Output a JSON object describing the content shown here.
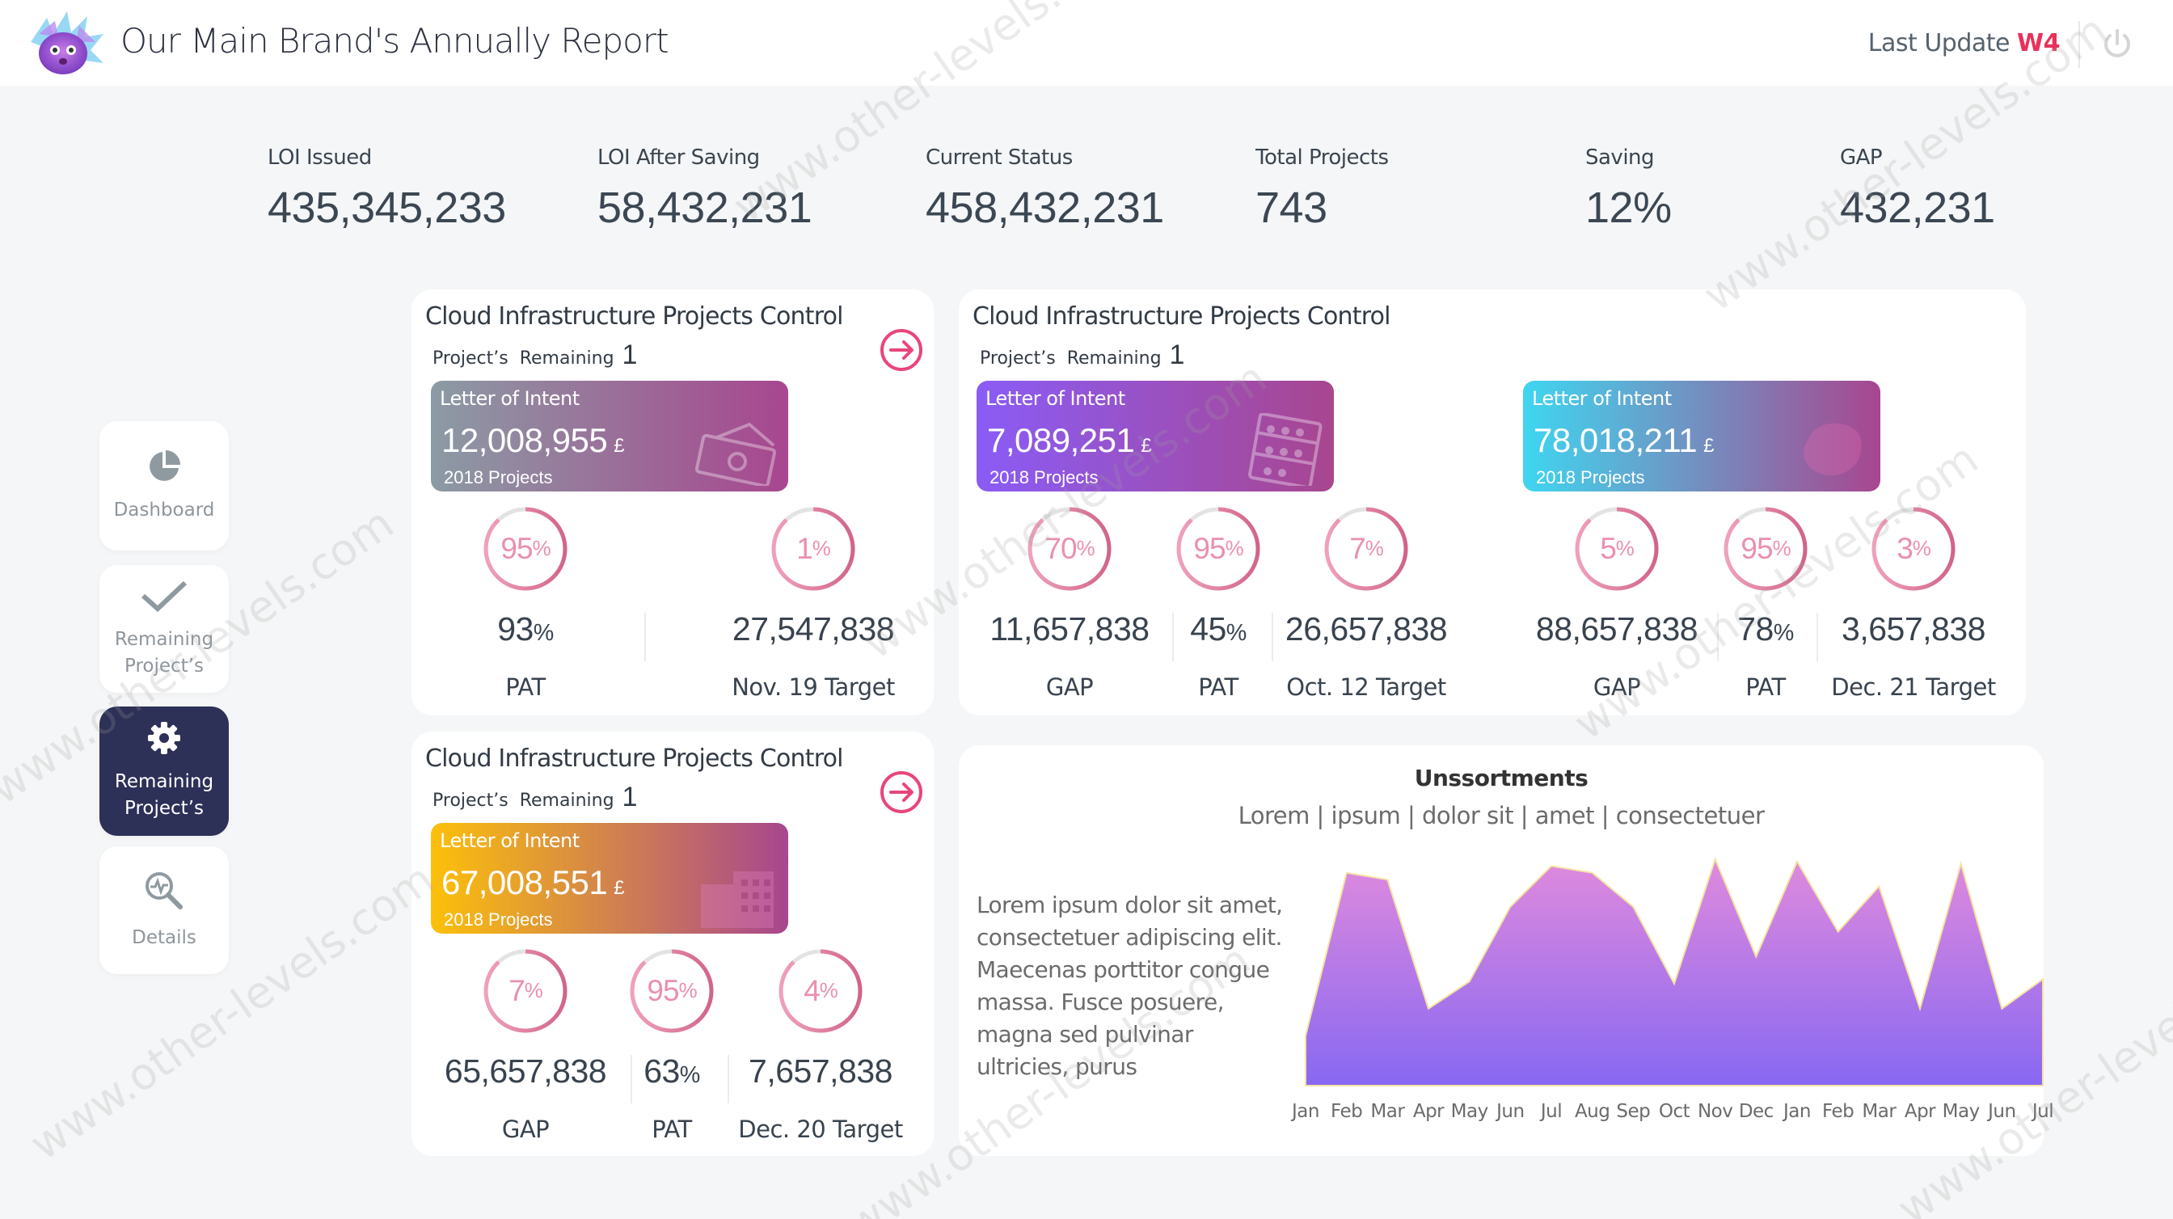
{
  "header": {
    "title": "Our Main Brand's Annually Report",
    "last_update_label": "Last Update",
    "last_update_value": "W4",
    "accent": "#e8325a"
  },
  "kpis": [
    {
      "label": "LOI Issued",
      "value": "435,345,233"
    },
    {
      "label": "LOI After Saving",
      "value": "58,432,231"
    },
    {
      "label": "Current Status",
      "value": "458,432,231"
    },
    {
      "label": "Total Projects",
      "value": "743"
    },
    {
      "label": "Saving",
      "value": "12%"
    },
    {
      "label": "GAP",
      "value": "432,231"
    }
  ],
  "sidebar": {
    "active_color": "#2d3057",
    "items": [
      {
        "label": "Dashboard",
        "icon": "pie-chart-icon",
        "active": false
      },
      {
        "label": "Remaining Project’s",
        "icon": "checkmark-icon",
        "active": false
      },
      {
        "label": "Remaining Project’s",
        "icon": "gear-icon",
        "active": true
      },
      {
        "label": "Details",
        "icon": "search-analytics-icon",
        "active": false
      }
    ]
  },
  "cards": [
    {
      "title": "Cloud Infrastructure Projects Control",
      "remaining_label": "Project’s  Remaining",
      "remaining_count": "1",
      "has_arrow": true,
      "loi": [
        {
          "label": "Letter of Intent",
          "amount": "12,008,955",
          "currency": "£",
          "sub": "2018 Projects",
          "icon": "money-icon",
          "gradient": [
            "#8b9ba4",
            "#a8468f"
          ]
        }
      ],
      "metrics": [
        {
          "ring": "95",
          "value": "93",
          "unit": "%",
          "label": "PAT"
        },
        {
          "ring": "1",
          "value": "27,547,838",
          "unit": "",
          "label": "Nov. 19 Target"
        }
      ]
    },
    {
      "title": "Cloud Infrastructure Projects Control",
      "remaining_label": "Project’s  Remaining",
      "remaining_count": "1",
      "has_arrow": false,
      "loi": [
        {
          "label": "Letter of Intent",
          "amount": "7,089,251",
          "currency": "£",
          "sub": "2018 Projects",
          "icon": "abacus-icon",
          "gradient": [
            "#8a5cf6",
            "#a8468f"
          ]
        },
        {
          "label": "Letter of Intent",
          "amount": "78,018,211",
          "currency": "£",
          "sub": "2018 Projects",
          "icon": "map-icon",
          "gradient": [
            "#3fd6f0",
            "#a8468f"
          ]
        }
      ],
      "metrics": [
        {
          "ring": "70",
          "value": "11,657,838",
          "unit": "",
          "label": "GAP"
        },
        {
          "ring": "95",
          "value": "45",
          "unit": "%",
          "label": "PAT"
        },
        {
          "ring": "7",
          "value": "26,657,838",
          "unit": "",
          "label": "Oct. 12 Target"
        },
        {
          "ring": "5",
          "value": "88,657,838",
          "unit": "",
          "label": "GAP"
        },
        {
          "ring": "95",
          "value": "78",
          "unit": "%",
          "label": "PAT"
        },
        {
          "ring": "3",
          "value": "3,657,838",
          "unit": "",
          "label": "Dec. 21 Target"
        }
      ]
    },
    {
      "title": "Cloud Infrastructure Projects Control",
      "remaining_label": "Project’s  Remaining",
      "remaining_count": "1",
      "has_arrow": true,
      "loi": [
        {
          "label": "Letter of Intent",
          "amount": "67,008,551",
          "currency": "£",
          "sub": "2018 Projects",
          "icon": "building-icon",
          "gradient": [
            "#fcc00a",
            "#a8468f"
          ]
        }
      ],
      "metrics": [
        {
          "ring": "7",
          "value": "65,657,838",
          "unit": "",
          "label": "GAP"
        },
        {
          "ring": "95",
          "value": "63",
          "unit": "%",
          "label": "PAT"
        },
        {
          "ring": "4",
          "value": "7,657,838",
          "unit": "",
          "label": "Dec. 20 Target"
        }
      ]
    }
  ],
  "ring_colors": {
    "track": "#e3e3e3",
    "fill": [
      "#f0a0bd",
      "#d2648a"
    ],
    "text": "#ea8fb0"
  },
  "chart_panel": {
    "title": "Unssortments",
    "subtitle": "Lorem | ipsum | dolor sit | amet | consectetuer",
    "paragraph": "Lorem ipsum dolor sit amet, consectetuer adipiscing elit. Maecenas porttitor congue massa. Fusce posuere, magna sed pulvinar ultricies, purus"
  },
  "chart_data": {
    "type": "area",
    "title": "Unssortments",
    "categories": [
      "Jan",
      "Feb",
      "Mar",
      "Apr",
      "May",
      "Jun",
      "Jul",
      "Aug",
      "Sep",
      "Oct",
      "Nov",
      "Dec",
      "Jan",
      "Feb",
      "Mar",
      "Apr",
      "May",
      "Jun",
      "Jul"
    ],
    "values": [
      22,
      94,
      91,
      34,
      46,
      79,
      97,
      94,
      79,
      45,
      100,
      57,
      99,
      68,
      88,
      34,
      98,
      34,
      47
    ],
    "ylim": [
      0,
      100
    ],
    "grid": false,
    "colors": {
      "top": "#df8add",
      "bottom": "#8868f2",
      "outline": "#f5e3a3"
    }
  },
  "watermark": "www.other-levels.com"
}
